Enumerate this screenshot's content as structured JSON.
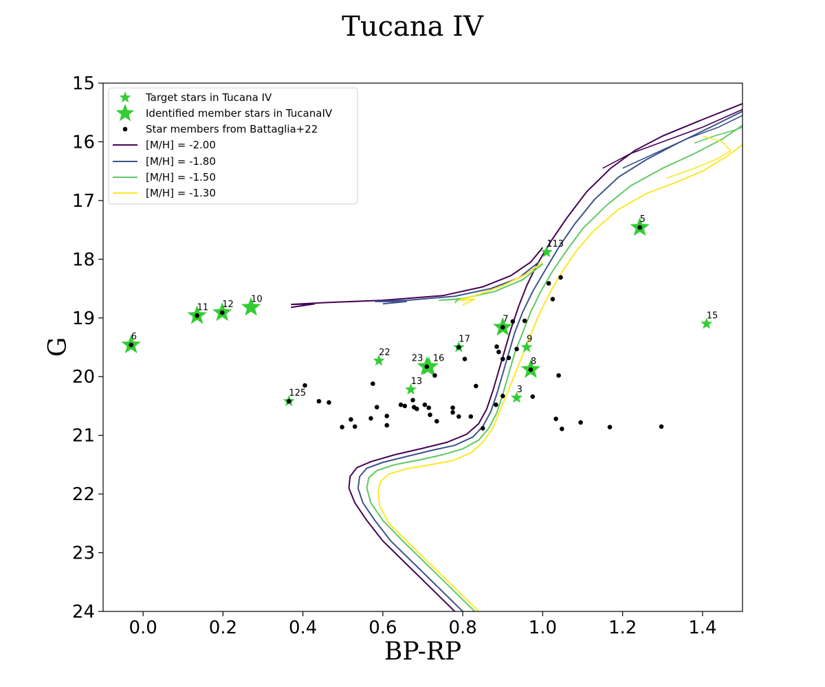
{
  "chart_data": {
    "type": "scatter",
    "title": "Tucana IV",
    "xlabel": "BP-RP",
    "ylabel": "G",
    "xlim": [
      -0.1,
      1.5
    ],
    "ylim": [
      24,
      15
    ],
    "y_inverted": true,
    "x_ticks": [
      "0.0",
      "0.2",
      "0.4",
      "0.6",
      "0.8",
      "1.0",
      "1.2",
      "1.4"
    ],
    "y_ticks": [
      "15",
      "16",
      "17",
      "18",
      "19",
      "20",
      "21",
      "22",
      "23",
      "24"
    ],
    "x_tick_values": [
      0.0,
      0.2,
      0.4,
      0.6,
      0.8,
      1.0,
      1.2,
      1.4
    ],
    "y_tick_values": [
      15,
      16,
      17,
      18,
      19,
      20,
      21,
      22,
      23,
      24
    ],
    "legend_position": "top-left",
    "legend": [
      {
        "label": "Target stars in Tucana IV",
        "marker": "small-star",
        "color": "#33cc33"
      },
      {
        "label": "Identified member stars in TucanaIV",
        "marker": "large-star",
        "color": "#33cc33"
      },
      {
        "label": "Star members from Battaglia+22",
        "marker": "dot",
        "color": "#000000"
      },
      {
        "label": "[M/H] = -2.00",
        "marker": "line",
        "color": "#440154"
      },
      {
        "label": "[M/H] = -1.80",
        "marker": "line",
        "color": "#3b528b"
      },
      {
        "label": "[M/H] = -1.50",
        "marker": "line",
        "color": "#5ec962"
      },
      {
        "label": "[M/H] = -1.30",
        "marker": "line",
        "color": "#fde725"
      }
    ],
    "target_stars": [
      {
        "id": "125",
        "x": 0.365,
        "y": 20.42
      },
      {
        "id": "22",
        "x": 0.59,
        "y": 19.73
      },
      {
        "id": "13",
        "x": 0.67,
        "y": 20.22
      },
      {
        "id": "17",
        "x": 0.79,
        "y": 19.5
      },
      {
        "id": "9",
        "x": 0.96,
        "y": 19.5
      },
      {
        "id": "3",
        "x": 0.935,
        "y": 20.36
      },
      {
        "id": "113",
        "x": 1.01,
        "y": 17.88
      },
      {
        "id": "15",
        "x": 1.41,
        "y": 19.1
      }
    ],
    "member_stars": [
      {
        "id": "6",
        "x": -0.03,
        "y": 19.46
      },
      {
        "id": "11",
        "x": 0.135,
        "y": 18.96
      },
      {
        "id": "12",
        "x": 0.198,
        "y": 18.91
      },
      {
        "id": "10",
        "x": 0.27,
        "y": 18.82
      },
      {
        "id": "23",
        "x": 0.71,
        "y": 19.83
      },
      {
        "id": "16",
        "x": 0.715,
        "y": 19.83
      },
      {
        "id": "7",
        "x": 0.9,
        "y": 19.16
      },
      {
        "id": "8",
        "x": 0.97,
        "y": 19.88
      },
      {
        "id": "5",
        "x": 1.243,
        "y": 17.46
      }
    ],
    "battaglia_members": [
      [
        -0.03,
        19.46
      ],
      [
        0.135,
        18.96
      ],
      [
        0.198,
        18.91
      ],
      [
        0.365,
        20.42
      ],
      [
        0.405,
        20.15
      ],
      [
        0.44,
        20.42
      ],
      [
        0.465,
        20.44
      ],
      [
        0.498,
        20.86
      ],
      [
        0.52,
        20.73
      ],
      [
        0.53,
        20.85
      ],
      [
        0.57,
        20.71
      ],
      [
        0.575,
        20.12
      ],
      [
        0.585,
        20.52
      ],
      [
        0.61,
        20.67
      ],
      [
        0.61,
        20.83
      ],
      [
        0.645,
        20.48
      ],
      [
        0.655,
        20.5
      ],
      [
        0.675,
        20.4
      ],
      [
        0.678,
        20.52
      ],
      [
        0.685,
        20.55
      ],
      [
        0.705,
        20.48
      ],
      [
        0.715,
        20.53
      ],
      [
        0.718,
        20.65
      ],
      [
        0.71,
        19.83
      ],
      [
        0.73,
        19.98
      ],
      [
        0.735,
        20.76
      ],
      [
        0.775,
        20.53
      ],
      [
        0.775,
        20.61
      ],
      [
        0.79,
        19.5
      ],
      [
        0.79,
        20.68
      ],
      [
        0.805,
        19.7
      ],
      [
        0.82,
        20.68
      ],
      [
        0.833,
        20.16
      ],
      [
        0.85,
        20.88
      ],
      [
        0.883,
        20.48
      ],
      [
        0.885,
        19.49
      ],
      [
        0.89,
        19.58
      ],
      [
        0.9,
        19.16
      ],
      [
        0.9,
        19.7
      ],
      [
        0.9,
        20.33
      ],
      [
        0.915,
        19.68
      ],
      [
        0.925,
        19.06
      ],
      [
        0.935,
        19.53
      ],
      [
        0.955,
        19.05
      ],
      [
        0.97,
        19.88
      ],
      [
        0.975,
        20.34
      ],
      [
        1.015,
        18.41
      ],
      [
        1.025,
        18.68
      ],
      [
        1.033,
        20.72
      ],
      [
        1.04,
        19.98
      ],
      [
        1.045,
        18.31
      ],
      [
        1.048,
        20.89
      ],
      [
        1.095,
        20.78
      ],
      [
        1.168,
        20.86
      ],
      [
        1.243,
        17.46
      ],
      [
        1.297,
        20.85
      ]
    ],
    "isochrones": [
      {
        "name": "[M/H] = -2.00",
        "color": "#440154",
        "points": [
          [
            0.85,
            24.6
          ],
          [
            0.78,
            24.0
          ],
          [
            0.72,
            23.6
          ],
          [
            0.66,
            23.2
          ],
          [
            0.6,
            22.8
          ],
          [
            0.56,
            22.45
          ],
          [
            0.53,
            22.15
          ],
          [
            0.515,
            21.9
          ],
          [
            0.518,
            21.7
          ],
          [
            0.535,
            21.55
          ],
          [
            0.57,
            21.45
          ],
          [
            0.63,
            21.33
          ],
          [
            0.7,
            21.22
          ],
          [
            0.76,
            21.12
          ],
          [
            0.81,
            20.98
          ],
          [
            0.84,
            20.8
          ],
          [
            0.86,
            20.55
          ],
          [
            0.875,
            20.25
          ],
          [
            0.89,
            19.9
          ],
          [
            0.905,
            19.55
          ],
          [
            0.92,
            19.2
          ],
          [
            0.94,
            18.8
          ],
          [
            0.96,
            18.45
          ],
          [
            0.985,
            18.1
          ],
          [
            1.02,
            17.7
          ],
          [
            1.06,
            17.3
          ],
          [
            1.11,
            16.85
          ],
          [
            1.17,
            16.45
          ],
          [
            1.23,
            16.15
          ],
          [
            1.3,
            15.9
          ],
          [
            1.4,
            15.62
          ],
          [
            1.5,
            15.35
          ]
        ]
      },
      {
        "name": "[M/H] = -1.80",
        "color": "#3b528b",
        "points": [
          [
            0.87,
            24.6
          ],
          [
            0.8,
            24.0
          ],
          [
            0.74,
            23.6
          ],
          [
            0.68,
            23.2
          ],
          [
            0.62,
            22.8
          ],
          [
            0.58,
            22.45
          ],
          [
            0.55,
            22.15
          ],
          [
            0.538,
            21.9
          ],
          [
            0.542,
            21.7
          ],
          [
            0.56,
            21.56
          ],
          [
            0.6,
            21.46
          ],
          [
            0.66,
            21.36
          ],
          [
            0.72,
            21.26
          ],
          [
            0.78,
            21.17
          ],
          [
            0.825,
            21.03
          ],
          [
            0.85,
            20.85
          ],
          [
            0.87,
            20.6
          ],
          [
            0.885,
            20.3
          ],
          [
            0.9,
            19.95
          ],
          [
            0.915,
            19.6
          ],
          [
            0.93,
            19.25
          ],
          [
            0.95,
            18.9
          ],
          [
            0.975,
            18.55
          ],
          [
            1.005,
            18.2
          ],
          [
            1.04,
            17.8
          ],
          [
            1.08,
            17.4
          ],
          [
            1.13,
            16.98
          ],
          [
            1.19,
            16.6
          ],
          [
            1.26,
            16.3
          ],
          [
            1.33,
            16.05
          ],
          [
            1.42,
            15.75
          ],
          [
            1.5,
            15.48
          ]
        ]
      },
      {
        "name": "[M/H] = -1.50",
        "color": "#5ec962",
        "points": [
          [
            0.9,
            24.6
          ],
          [
            0.83,
            24.0
          ],
          [
            0.77,
            23.6
          ],
          [
            0.71,
            23.2
          ],
          [
            0.65,
            22.8
          ],
          [
            0.6,
            22.45
          ],
          [
            0.57,
            22.15
          ],
          [
            0.56,
            21.9
          ],
          [
            0.565,
            21.72
          ],
          [
            0.585,
            21.6
          ],
          [
            0.63,
            21.5
          ],
          [
            0.69,
            21.42
          ],
          [
            0.75,
            21.33
          ],
          [
            0.8,
            21.23
          ],
          [
            0.84,
            21.08
          ],
          [
            0.865,
            20.88
          ],
          [
            0.885,
            20.62
          ],
          [
            0.9,
            20.3
          ],
          [
            0.915,
            19.95
          ],
          [
            0.93,
            19.6
          ],
          [
            0.95,
            19.25
          ],
          [
            0.97,
            18.9
          ],
          [
            0.995,
            18.55
          ],
          [
            1.025,
            18.2
          ],
          [
            1.06,
            17.85
          ],
          [
            1.1,
            17.48
          ],
          [
            1.16,
            17.08
          ],
          [
            1.22,
            16.75
          ],
          [
            1.3,
            16.45
          ],
          [
            1.38,
            16.2
          ],
          [
            1.45,
            15.95
          ],
          [
            1.5,
            15.72
          ]
        ]
      },
      {
        "name": "[M/H] = -1.30",
        "color": "#fde725",
        "points": [
          [
            0.9,
            24.4
          ],
          [
            0.84,
            24.0
          ],
          [
            0.78,
            23.6
          ],
          [
            0.72,
            23.2
          ],
          [
            0.66,
            22.8
          ],
          [
            0.615,
            22.5
          ],
          [
            0.592,
            22.2
          ],
          [
            0.588,
            21.95
          ],
          [
            0.595,
            21.78
          ],
          [
            0.615,
            21.66
          ],
          [
            0.66,
            21.57
          ],
          [
            0.72,
            21.5
          ],
          [
            0.775,
            21.43
          ],
          [
            0.82,
            21.3
          ],
          [
            0.85,
            21.12
          ],
          [
            0.875,
            20.88
          ],
          [
            0.895,
            20.55
          ],
          [
            0.915,
            20.22
          ],
          [
            0.935,
            19.88
          ],
          [
            0.955,
            19.55
          ],
          [
            0.975,
            19.2
          ],
          [
            0.995,
            18.88
          ],
          [
            1.02,
            18.55
          ],
          [
            1.05,
            18.2
          ],
          [
            1.085,
            17.85
          ],
          [
            1.13,
            17.5
          ],
          [
            1.19,
            17.15
          ],
          [
            1.26,
            16.88
          ],
          [
            1.33,
            16.7
          ],
          [
            1.4,
            16.5
          ],
          [
            1.46,
            16.25
          ],
          [
            1.5,
            16.05
          ]
        ]
      }
    ],
    "horizontal_branches": [
      {
        "color": "#440154",
        "points": [
          [
            1.0,
            17.8
          ],
          [
            0.97,
            18.05
          ],
          [
            0.92,
            18.28
          ],
          [
            0.85,
            18.47
          ],
          [
            0.75,
            18.62
          ],
          [
            0.6,
            18.7
          ],
          [
            0.45,
            18.74
          ],
          [
            0.37,
            18.77
          ],
          [
            0.43,
            18.76
          ],
          [
            0.37,
            18.82
          ]
        ]
      },
      {
        "color": "#3b528b",
        "points": [
          [
            0.99,
            18.05
          ],
          [
            0.94,
            18.32
          ],
          [
            0.87,
            18.5
          ],
          [
            0.78,
            18.63
          ],
          [
            0.66,
            18.7
          ],
          [
            0.58,
            18.72
          ],
          [
            0.66,
            18.72
          ],
          [
            0.6,
            18.76
          ]
        ]
      },
      {
        "color": "#5ec962",
        "points": [
          [
            1.0,
            18.08
          ],
          [
            0.95,
            18.35
          ],
          [
            0.88,
            18.55
          ],
          [
            0.8,
            18.67
          ],
          [
            0.74,
            18.7
          ],
          [
            0.79,
            18.68
          ],
          [
            0.78,
            18.74
          ]
        ]
      },
      {
        "color": "#fde725",
        "points": [
          [
            1.0,
            18.05
          ],
          [
            0.96,
            18.25
          ],
          [
            0.9,
            18.45
          ],
          [
            0.84,
            18.6
          ],
          [
            0.79,
            18.7
          ],
          [
            0.83,
            18.68
          ],
          [
            0.8,
            18.78
          ]
        ]
      }
    ],
    "agb_loops": [
      {
        "color": "#440154",
        "points": [
          [
            1.15,
            16.45
          ],
          [
            1.22,
            16.2
          ],
          [
            1.3,
            16.0
          ],
          [
            1.4,
            15.75
          ],
          [
            1.5,
            15.45
          ]
        ]
      },
      {
        "color": "#3b528b",
        "points": [
          [
            1.2,
            16.45
          ],
          [
            1.28,
            16.2
          ],
          [
            1.36,
            15.95
          ],
          [
            1.44,
            15.75
          ],
          [
            1.5,
            15.55
          ]
        ]
      },
      {
        "color": "#5ec962",
        "points": [
          [
            1.38,
            16.02
          ],
          [
            1.43,
            15.9
          ],
          [
            1.48,
            15.8
          ],
          [
            1.5,
            15.75
          ]
        ]
      },
      {
        "color": "#fde725",
        "points": [
          [
            1.4,
            15.9
          ],
          [
            1.45,
            16.0
          ],
          [
            1.47,
            16.15
          ],
          [
            1.44,
            16.28
          ],
          [
            1.38,
            16.45
          ],
          [
            1.31,
            16.62
          ]
        ]
      }
    ]
  }
}
